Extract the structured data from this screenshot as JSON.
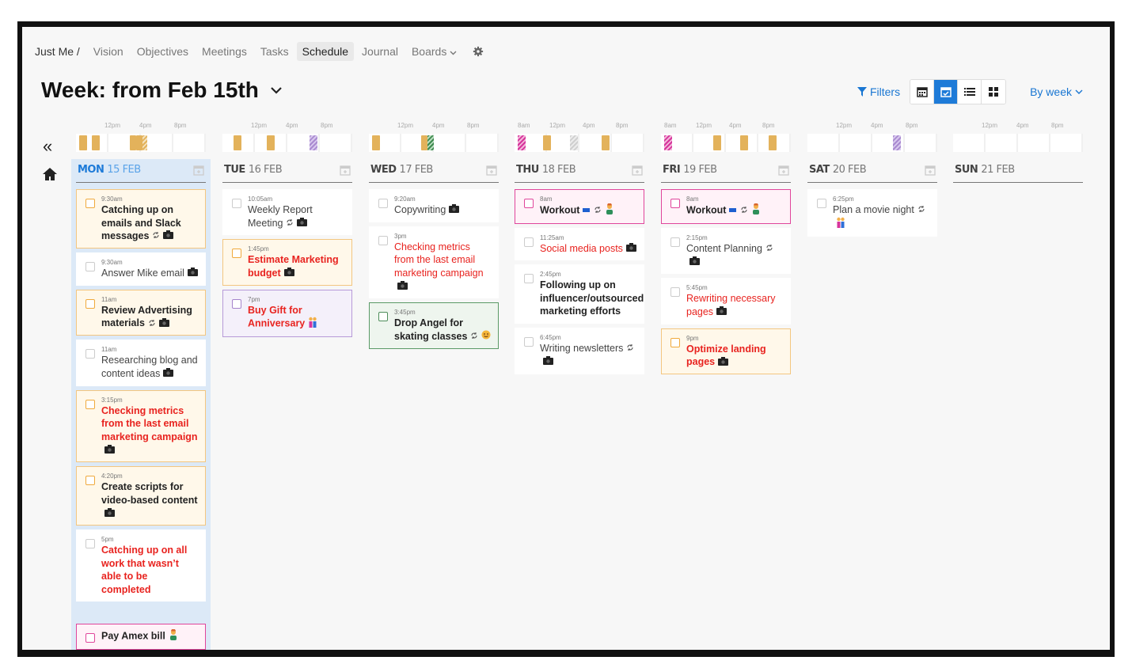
{
  "nav": {
    "crumb": "Just Me /",
    "items": [
      "Vision",
      "Objectives",
      "Meetings",
      "Tasks",
      "Schedule",
      "Journal",
      "Boards"
    ],
    "active": "Schedule"
  },
  "header": {
    "title": "Week: from Feb 15th",
    "filters_label": "Filters",
    "by_week_label": "By week"
  },
  "nav_arrows": {
    "prev": "«",
    "next": "»"
  },
  "timeline_ticks": {
    "mon": [
      "12pm",
      "4pm",
      "8pm"
    ],
    "tue": [
      "12pm",
      "4pm",
      "8pm"
    ],
    "wed": [
      "12pm",
      "4pm",
      "8pm"
    ],
    "thu": [
      "8am",
      "12pm",
      "4pm",
      "8pm"
    ],
    "fri": [
      "8am",
      "12pm",
      "4pm",
      "8pm"
    ],
    "sat": [
      "12pm",
      "4pm",
      "8pm"
    ],
    "sun": [
      "12pm",
      "4pm",
      "8pm"
    ]
  },
  "colors": {
    "accent": "#1e7bd8",
    "task_red": "#e8231f",
    "gold": "#e3b25b",
    "pink": "#d6349c",
    "purple": "#a98ad0",
    "green": "#3e8a4e"
  },
  "days": [
    {
      "dow": "MON",
      "num": "15 FEB",
      "today": true
    },
    {
      "dow": "TUE",
      "num": "16 FEB"
    },
    {
      "dow": "WED",
      "num": "17 FEB"
    },
    {
      "dow": "THU",
      "num": "18 FEB"
    },
    {
      "dow": "FRI",
      "num": "19 FEB"
    },
    {
      "dow": "SAT",
      "num": "20 FEB"
    },
    {
      "dow": "SUN",
      "num": "21 FEB"
    }
  ],
  "mon": [
    {
      "time": "9:30am",
      "title": "Catching up on emails and Slack messages",
      "icons": [
        "repeat-icon",
        "camera-icon"
      ]
    },
    {
      "time": "9:30am",
      "title": "Answer Mike email",
      "icons": [
        "camera-icon"
      ]
    },
    {
      "time": "11am",
      "title": "Review Advertising materials",
      "icons": [
        "repeat-icon",
        "camera-icon"
      ]
    },
    {
      "time": "11am",
      "title": "Researching blog and content ideas",
      "icons": [
        "camera-icon"
      ]
    },
    {
      "time": "3:15pm",
      "title": "Checking metrics from the last email marketing campaign",
      "icons": [
        "camera-icon"
      ]
    },
    {
      "time": "4:20pm",
      "title": "Create scripts for video-based content",
      "icons": [
        "camera-icon"
      ]
    },
    {
      "time": "5pm",
      "title": "Catching up on all work that wasn’t able to be completed",
      "icons": []
    },
    {
      "time": "",
      "title": "Pay Amex bill",
      "icons": [
        "person-icon"
      ]
    }
  ],
  "tue": [
    {
      "time": "10:05am",
      "title": "Weekly Report Meeting",
      "icons": [
        "repeat-icon",
        "camera-icon"
      ]
    },
    {
      "time": "1:45pm",
      "title": "Estimate Marketing budget",
      "icons": [
        "camera-icon"
      ]
    },
    {
      "time": "7pm",
      "title": "Buy Gift for Anniversary",
      "icons": [
        "couple-icon"
      ]
    }
  ],
  "wed": [
    {
      "time": "9:20am",
      "title": "Copywriting",
      "icons": [
        "camera-icon"
      ]
    },
    {
      "time": "3pm",
      "title": "Checking metrics from the last email marketing campaign",
      "icons": [
        "camera-icon"
      ]
    },
    {
      "time": "3:45pm",
      "title": "Drop Angel for skating classes",
      "icons": [
        "repeat-icon",
        "child-icon"
      ]
    }
  ],
  "thu": [
    {
      "time": "8am",
      "title": "Workout",
      "icons": [
        "flag-icon",
        "repeat-icon",
        "person-icon"
      ]
    },
    {
      "time": "11:25am",
      "title": "Social media posts",
      "icons": [
        "camera-icon"
      ]
    },
    {
      "time": "2:45pm",
      "title": "Following up on influencer/outsourced marketing efforts",
      "icons": []
    },
    {
      "time": "6:45pm",
      "title": "Writing newsletters",
      "icons": [
        "repeat-icon",
        "camera-icon"
      ]
    }
  ],
  "fri": [
    {
      "time": "8am",
      "title": "Workout",
      "icons": [
        "flag-icon",
        "repeat-icon",
        "person-icon"
      ]
    },
    {
      "time": "2:15pm",
      "title": "Content Planning",
      "icons": [
        "repeat-icon",
        "camera-icon"
      ]
    },
    {
      "time": "5:45pm",
      "title": "Rewriting necessary pages",
      "icons": [
        "camera-icon"
      ]
    },
    {
      "time": "9pm",
      "title": "Optimize landing pages",
      "icons": [
        "camera-icon"
      ]
    }
  ],
  "sat": [
    {
      "time": "6:25pm",
      "title": "Plan a movie night",
      "icons": [
        "repeat-icon",
        "couple-icon"
      ]
    }
  ]
}
